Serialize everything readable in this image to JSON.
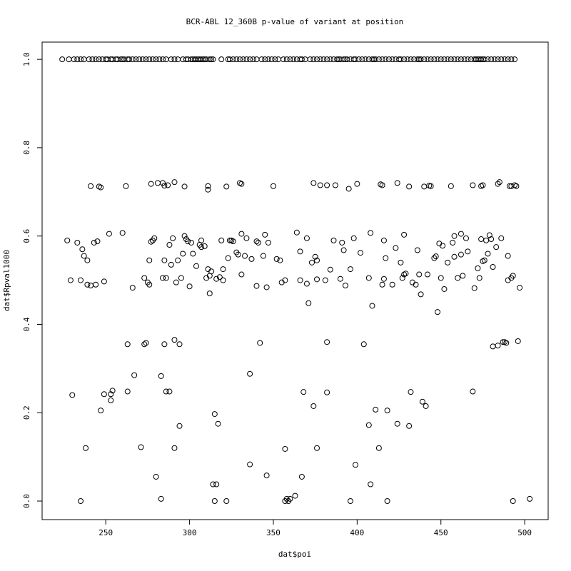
{
  "chart_data": {
    "type": "scatter",
    "title": "BCR-ABL 12_360B p-value of variant at position",
    "xlabel": "dat$poi",
    "ylabel": "dat$Rpval1000",
    "color": "#000000",
    "xlim": [
      212,
      514
    ],
    "ylim": [
      -0.042,
      1.039
    ],
    "xticks": [
      250,
      300,
      350,
      400,
      450,
      500
    ],
    "yticks": [
      {
        "value": 0,
        "label": "0.0"
      },
      0.2,
      0.4,
      0.6,
      0.8,
      {
        "value": 1,
        "label": "1.0"
      }
    ],
    "x": [
      224,
      228,
      231,
      233,
      235,
      237,
      240,
      242,
      244,
      246,
      248,
      250,
      251,
      253,
      254,
      256,
      257,
      259,
      260,
      261,
      263,
      264,
      266,
      268,
      270,
      272,
      274,
      276,
      278,
      280,
      282,
      284,
      286,
      289,
      291,
      293,
      296,
      298,
      299,
      301,
      302,
      303,
      304,
      305,
      306,
      307,
      308,
      309,
      310,
      312,
      313,
      314,
      319,
      323,
      324,
      326,
      328,
      330,
      332,
      334,
      336,
      338,
      340,
      343,
      345,
      347,
      349,
      351,
      353,
      356,
      358,
      360,
      362,
      364,
      366,
      367,
      369,
      372,
      374,
      376,
      378,
      380,
      382,
      384,
      386,
      388,
      389,
      390,
      392,
      393,
      394,
      396,
      398,
      399,
      401,
      403,
      405,
      407,
      409,
      410,
      411,
      413,
      415,
      417,
      419,
      421,
      423,
      425,
      426,
      428,
      430,
      432,
      434,
      436,
      437,
      438,
      440,
      442,
      444,
      446,
      448,
      450,
      452,
      454,
      456,
      458,
      460,
      462,
      464,
      466,
      468,
      470,
      471,
      472,
      473,
      474,
      475,
      476,
      478,
      480,
      482,
      484,
      486,
      488,
      490,
      492,
      494,
      227,
      229,
      230,
      233,
      235,
      235,
      236,
      237,
      238,
      239,
      239,
      241,
      241,
      243,
      244,
      245,
      246,
      247,
      247,
      249,
      249,
      252,
      253,
      253,
      254,
      260,
      262,
      263,
      263,
      266,
      267,
      271,
      273,
      273,
      274,
      275,
      276,
      276,
      277,
      277,
      278,
      279,
      280,
      281,
      283,
      283,
      284,
      284,
      285,
      285,
      285,
      286,
      286,
      287,
      288,
      288,
      289,
      290,
      291,
      291,
      291,
      292,
      293,
      294,
      294,
      295,
      296,
      297,
      297,
      298,
      299,
      300,
      301,
      302,
      304,
      306,
      307,
      307,
      309,
      310,
      311,
      311,
      311,
      312,
      312,
      313,
      314,
      315,
      315,
      316,
      316,
      317,
      318,
      319,
      320,
      320,
      322,
      322,
      323,
      324,
      325,
      326,
      328,
      329,
      330,
      331,
      331,
      331,
      333,
      334,
      336,
      336,
      337,
      340,
      340,
      341,
      342,
      344,
      345,
      346,
      346,
      347,
      350,
      352,
      354,
      355,
      357,
      357,
      357,
      358,
      359,
      360,
      363,
      364,
      366,
      366,
      367,
      368,
      370,
      370,
      371,
      373,
      374,
      374,
      375,
      376,
      376,
      376,
      378,
      381,
      382,
      382,
      382,
      384,
      386,
      387,
      390,
      391,
      392,
      393,
      395,
      396,
      396,
      398,
      399,
      400,
      402,
      404,
      407,
      407,
      408,
      408,
      409,
      411,
      413,
      414,
      415,
      415,
      416,
      416,
      417,
      418,
      418,
      421,
      423,
      424,
      424,
      426,
      427,
      428,
      428,
      429,
      431,
      431,
      432,
      433,
      435,
      436,
      437,
      438,
      439,
      440,
      441,
      442,
      443,
      444,
      446,
      447,
      448,
      449,
      450,
      451,
      452,
      454,
      456,
      457,
      458,
      458,
      460,
      462,
      462,
      463,
      465,
      466,
      469,
      469,
      470,
      472,
      473,
      474,
      474,
      475,
      475,
      476,
      477,
      478,
      479,
      480,
      481,
      481,
      483,
      484,
      484,
      485,
      486,
      487,
      488,
      489,
      490,
      490,
      491,
      492,
      492,
      493,
      493,
      494,
      495,
      496,
      497,
      503
    ],
    "values": [
      1,
      1,
      1,
      1,
      1,
      1,
      1,
      1,
      1,
      1,
      1,
      1,
      1,
      1,
      1,
      1,
      1,
      1,
      1,
      1,
      1,
      1,
      1,
      1,
      1,
      1,
      1,
      1,
      1,
      1,
      1,
      1,
      1,
      1,
      1,
      1,
      1,
      1,
      1,
      1,
      1,
      1,
      1,
      1,
      1,
      1,
      1,
      1,
      1,
      1,
      1,
      1,
      1,
      1,
      1,
      1,
      1,
      1,
      1,
      1,
      1,
      1,
      1,
      1,
      1,
      1,
      1,
      1,
      1,
      1,
      1,
      1,
      1,
      1,
      1,
      1,
      1,
      1,
      1,
      1,
      1,
      1,
      1,
      1,
      1,
      1,
      1,
      1,
      1,
      1,
      1,
      1,
      1,
      1,
      1,
      1,
      1,
      1,
      1,
      1,
      1,
      1,
      1,
      1,
      1,
      1,
      1,
      1,
      1,
      1,
      1,
      1,
      1,
      1,
      1,
      1,
      1,
      1,
      1,
      1,
      1,
      1,
      1,
      1,
      1,
      1,
      1,
      1,
      1,
      1,
      1,
      1,
      1,
      1,
      1,
      1,
      1,
      1,
      1,
      1,
      1,
      1,
      1,
      1,
      1,
      1,
      1,
      0.59,
      0.5,
      0.24,
      0.585,
      0.5,
      0,
      0.57,
      0.555,
      0.12,
      0.545,
      0.49,
      0.713,
      0.488,
      0.585,
      0.49,
      0.588,
      0.712,
      0.71,
      0.205,
      0.497,
      0.242,
      0.605,
      0.242,
      0.228,
      0.25,
      0.607,
      0.713,
      0.355,
      0.248,
      0.483,
      0.285,
      0.122,
      0.505,
      0.355,
      0.358,
      0.495,
      0.545,
      0.49,
      0.718,
      0.587,
      0.59,
      0.595,
      0.055,
      0.72,
      0.283,
      0.005,
      0.505,
      0.72,
      0.545,
      0.355,
      0.714,
      0.248,
      0.505,
      0.715,
      0.248,
      0.58,
      0.535,
      0.595,
      0.722,
      0.365,
      0.12,
      0.495,
      0.545,
      0.355,
      0.17,
      0.505,
      0.56,
      0.712,
      0.6,
      0.593,
      0.588,
      0.486,
      0.585,
      0.56,
      0.532,
      0.58,
      0.575,
      0.59,
      0.577,
      0.505,
      0.713,
      0.705,
      0.525,
      0.47,
      0.51,
      0.52,
      0.038,
      0.197,
      0,
      0.503,
      0.038,
      0.175,
      0.507,
      0.59,
      0.525,
      0.5,
      0,
      0.712,
      0.55,
      0.59,
      0.59,
      0.588,
      0.563,
      0.558,
      0.72,
      0.718,
      0.605,
      0.513,
      0.555,
      0.595,
      0.288,
      0.083,
      0.548,
      0.487,
      0.588,
      0.585,
      0.358,
      0.555,
      0.603,
      0.058,
      0.484,
      0.585,
      0.713,
      0.548,
      0.545,
      0.495,
      0.118,
      0.5,
      0,
      0.005,
      0,
      0.005,
      0.012,
      0.608,
      0.5,
      0.565,
      0.055,
      0.247,
      0.595,
      0.492,
      0.448,
      0.54,
      0.72,
      0.215,
      0.553,
      0.545,
      0.502,
      0.12,
      0.715,
      0.5,
      0.715,
      0.36,
      0.246,
      0.524,
      0.59,
      0.715,
      0.503,
      0.585,
      0.568,
      0.488,
      0.707,
      0.525,
      0,
      0.595,
      0.082,
      0.718,
      0.562,
      0.355,
      0.505,
      0.172,
      0.607,
      0.038,
      0.442,
      0.207,
      0.12,
      0.717,
      0.715,
      0.49,
      0.503,
      0.59,
      0.55,
      0.205,
      0,
      0.49,
      0.573,
      0.72,
      0.175,
      0.54,
      0.505,
      0.513,
      0.603,
      0.515,
      0.17,
      0.712,
      0.247,
      0.495,
      0.49,
      0.568,
      0.513,
      0.468,
      0.225,
      0.712,
      0.215,
      0.513,
      0.714,
      0.713,
      0.55,
      0.554,
      0.428,
      0.583,
      0.505,
      0.578,
      0.48,
      0.54,
      0.713,
      0.585,
      0.553,
      0.6,
      0.505,
      0.558,
      0.605,
      0.51,
      0.595,
      0.565,
      0.715,
      0.248,
      0.482,
      0.527,
      0.505,
      0.593,
      0.713,
      0.543,
      0.715,
      0.545,
      0.59,
      0.56,
      0.602,
      0.593,
      0.53,
      0.35,
      0.575,
      0.352,
      0.718,
      0.722,
      0.595,
      0.36,
      0.36,
      0.358,
      0.555,
      0.5,
      0.713,
      0.713,
      0.505,
      0.51,
      0,
      0.715,
      0.713,
      0.362,
      0.483,
      0.005
    ]
  }
}
